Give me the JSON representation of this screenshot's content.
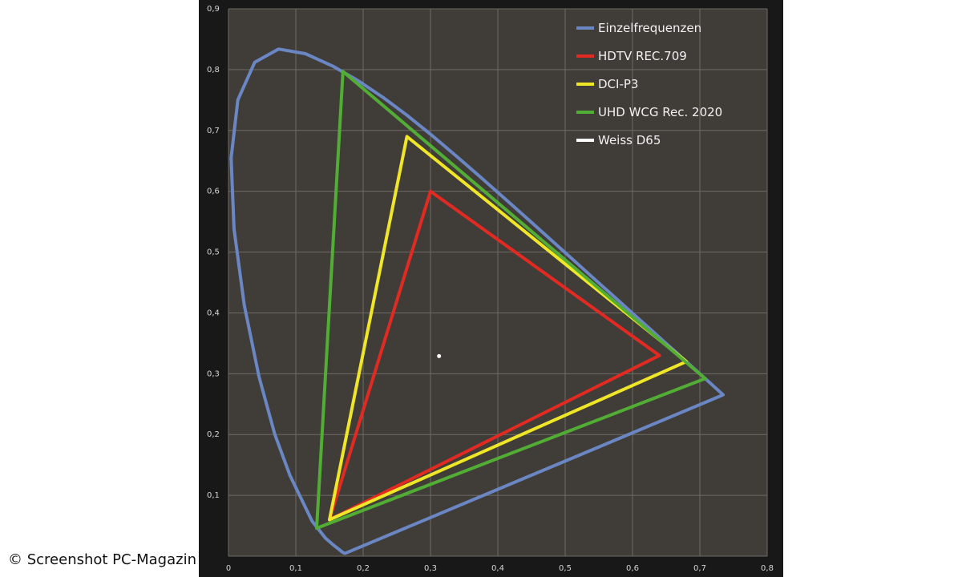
{
  "credit": "© Screenshot PC-Magazin",
  "chart_data": {
    "type": "line",
    "xlim": [
      0,
      0.8
    ],
    "ylim": [
      0,
      0.9
    ],
    "x_ticks": [
      "0",
      "0,1",
      "0,2",
      "0,3",
      "0,4",
      "0,5",
      "0,6",
      "0,7",
      "0,8"
    ],
    "y_ticks": [
      "0,9",
      "0,8",
      "0,7",
      "0,6",
      "0,5",
      "0,4",
      "0,3",
      "0,2",
      "0,1"
    ],
    "grid": true,
    "legend_position": "top-right",
    "series": [
      {
        "name": "Einzelfrequenzen",
        "color": "#6a87c4",
        "closed": true,
        "points": [
          [
            0.1741,
            0.005
          ],
          [
            0.1738,
            0.0049
          ],
          [
            0.1736,
            0.0049
          ],
          [
            0.1733,
            0.0048
          ],
          [
            0.1726,
            0.0048
          ],
          [
            0.1714,
            0.0051
          ],
          [
            0.1689,
            0.0069
          ],
          [
            0.1644,
            0.0109
          ],
          [
            0.1566,
            0.0177
          ],
          [
            0.144,
            0.0297
          ],
          [
            0.1241,
            0.0578
          ],
          [
            0.0913,
            0.1327
          ],
          [
            0.0687,
            0.2007
          ],
          [
            0.0454,
            0.295
          ],
          [
            0.0235,
            0.4127
          ],
          [
            0.0082,
            0.5384
          ],
          [
            0.0039,
            0.6548
          ],
          [
            0.0139,
            0.7502
          ],
          [
            0.0389,
            0.812
          ],
          [
            0.0743,
            0.8338
          ],
          [
            0.1142,
            0.8262
          ],
          [
            0.1547,
            0.8059
          ],
          [
            0.1929,
            0.7816
          ],
          [
            0.2296,
            0.7543
          ],
          [
            0.2658,
            0.7243
          ],
          [
            0.3016,
            0.6923
          ],
          [
            0.3373,
            0.6589
          ],
          [
            0.3731,
            0.6245
          ],
          [
            0.4087,
            0.5896
          ],
          [
            0.4441,
            0.5547
          ],
          [
            0.4788,
            0.5202
          ],
          [
            0.5125,
            0.4866
          ],
          [
            0.5448,
            0.4544
          ],
          [
            0.5752,
            0.4242
          ],
          [
            0.6029,
            0.3965
          ],
          [
            0.627,
            0.3725
          ],
          [
            0.6482,
            0.3514
          ],
          [
            0.6658,
            0.334
          ],
          [
            0.6801,
            0.3197
          ],
          [
            0.6915,
            0.3083
          ],
          [
            0.7006,
            0.2993
          ],
          [
            0.7079,
            0.292
          ],
          [
            0.714,
            0.2859
          ],
          [
            0.719,
            0.2809
          ],
          [
            0.723,
            0.277
          ],
          [
            0.726,
            0.274
          ],
          [
            0.7347,
            0.2653
          ]
        ]
      },
      {
        "name": "HDTV REC.709",
        "color": "#e02a22",
        "closed": true,
        "points": [
          [
            0.64,
            0.33
          ],
          [
            0.3,
            0.6
          ],
          [
            0.15,
            0.06
          ]
        ]
      },
      {
        "name": "DCI-P3",
        "color": "#f0e628",
        "closed": true,
        "points": [
          [
            0.68,
            0.32
          ],
          [
            0.265,
            0.69
          ],
          [
            0.15,
            0.06
          ]
        ]
      },
      {
        "name": "UHD WCG Rec. 2020",
        "color": "#52ad35",
        "closed": true,
        "points": [
          [
            0.708,
            0.292
          ],
          [
            0.17,
            0.797
          ],
          [
            0.131,
            0.046
          ]
        ]
      },
      {
        "name": "Weiss D65",
        "color": "#ffffff",
        "points": [
          [
            0.3127,
            0.329
          ]
        ]
      }
    ]
  }
}
